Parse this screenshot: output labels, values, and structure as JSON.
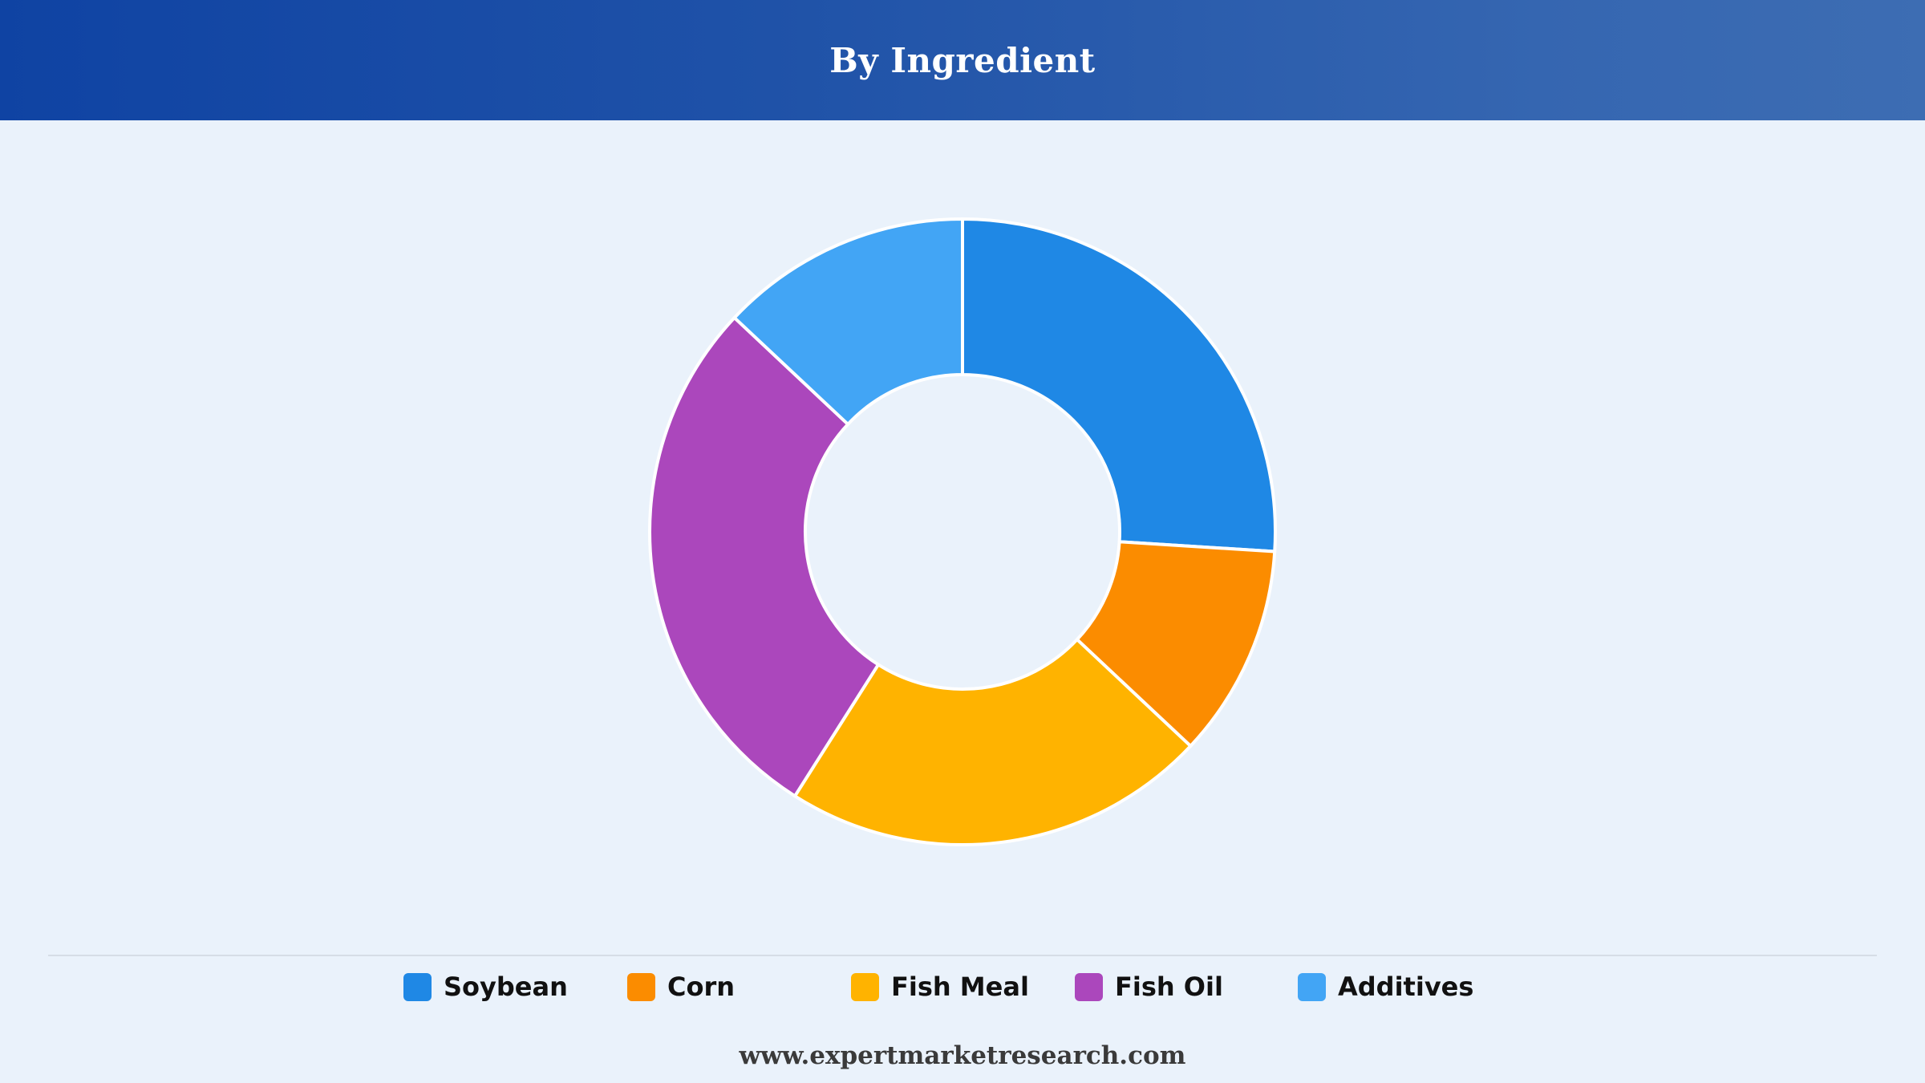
{
  "header": {
    "title": "By Ingredient"
  },
  "chart_data": {
    "type": "pie",
    "variant": "donut",
    "title": "By Ingredient",
    "categories": [
      "Soybean",
      "Corn",
      "Fish Meal",
      "Fish Oil",
      "Additives"
    ],
    "values": [
      26,
      11,
      22,
      28,
      13
    ],
    "colors": [
      "#1f88e5",
      "#fb8c00",
      "#ffb300",
      "#ab47bc",
      "#42a5f5"
    ],
    "legend_position": "bottom"
  },
  "legend": {
    "items": [
      {
        "label": "Soybean",
        "color": "#1f88e5"
      },
      {
        "label": "Corn",
        "color": "#fb8c00"
      },
      {
        "label": "Fish Meal",
        "color": "#ffb300"
      },
      {
        "label": "Fish Oil",
        "color": "#ab47bc"
      },
      {
        "label": "Additives",
        "color": "#42a5f5"
      }
    ]
  },
  "footer": {
    "source": "www.expertmarketresearch.com"
  }
}
